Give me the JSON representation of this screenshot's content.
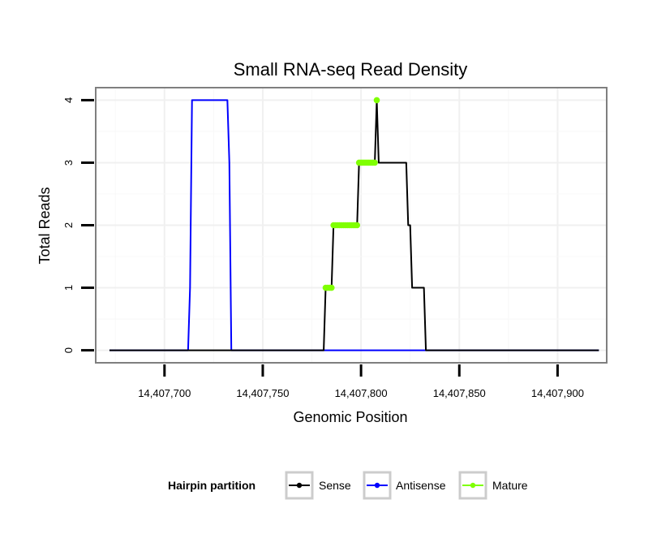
{
  "chart_data": {
    "type": "line",
    "title": "Small RNA-seq Read Density",
    "xlabel": "Genomic Position",
    "ylabel": "Total Reads",
    "xlim": [
      14407665,
      14407925
    ],
    "ylim": [
      -0.2,
      4.2
    ],
    "x_ticks": [
      14407700,
      14407750,
      14407800,
      14407850,
      14407900
    ],
    "x_tick_labels": [
      "14,407,700",
      "14,407,750",
      "14,407,800",
      "14,407,850",
      "14,407,900"
    ],
    "y_ticks": [
      0,
      1,
      2,
      3,
      4
    ],
    "y_tick_labels": [
      "0",
      "1",
      "2",
      "3",
      "4"
    ],
    "grid": true,
    "legend": {
      "title": "Hairpin partition",
      "position": "bottom",
      "entries": [
        {
          "label": "Sense",
          "color": "#000000"
        },
        {
          "label": "Antisense",
          "color": "#0000ff"
        },
        {
          "label": "Mature",
          "color": "#7fff00"
        }
      ]
    },
    "series": [
      {
        "name": "Sense",
        "color": "#000000",
        "x": [
          14407672,
          14407781,
          14407782,
          14407785,
          14407786,
          14407798,
          14407799,
          14407807,
          14407808,
          14407809,
          14407823,
          14407824,
          14407825,
          14407826,
          14407832,
          14407833,
          14407921
        ],
        "y": [
          0,
          0,
          1,
          1,
          2,
          2,
          3,
          3,
          4,
          3,
          3,
          2,
          2,
          1,
          1,
          0,
          0
        ]
      },
      {
        "name": "Antisense",
        "color": "#0000ff",
        "x": [
          14407672,
          14407712,
          14407713,
          14407714,
          14407732,
          14407733,
          14407734,
          14407921
        ],
        "y": [
          0,
          0,
          1,
          4,
          4,
          3,
          0,
          0
        ]
      },
      {
        "name": "Mature",
        "color": "#7fff00",
        "x": [
          14407782,
          14407783,
          14407784,
          14407785,
          14407786,
          14407787,
          14407788,
          14407789,
          14407790,
          14407791,
          14407792,
          14407793,
          14407794,
          14407795,
          14407796,
          14407797,
          14407798,
          14407799,
          14407800,
          14407801,
          14407802,
          14407803,
          14407804,
          14407805,
          14407806,
          14407807,
          14407808
        ],
        "y": [
          1,
          1,
          1,
          1,
          2,
          2,
          2,
          2,
          2,
          2,
          2,
          2,
          2,
          2,
          2,
          2,
          2,
          3,
          3,
          3,
          3,
          3,
          3,
          3,
          3,
          3,
          4
        ]
      }
    ]
  }
}
